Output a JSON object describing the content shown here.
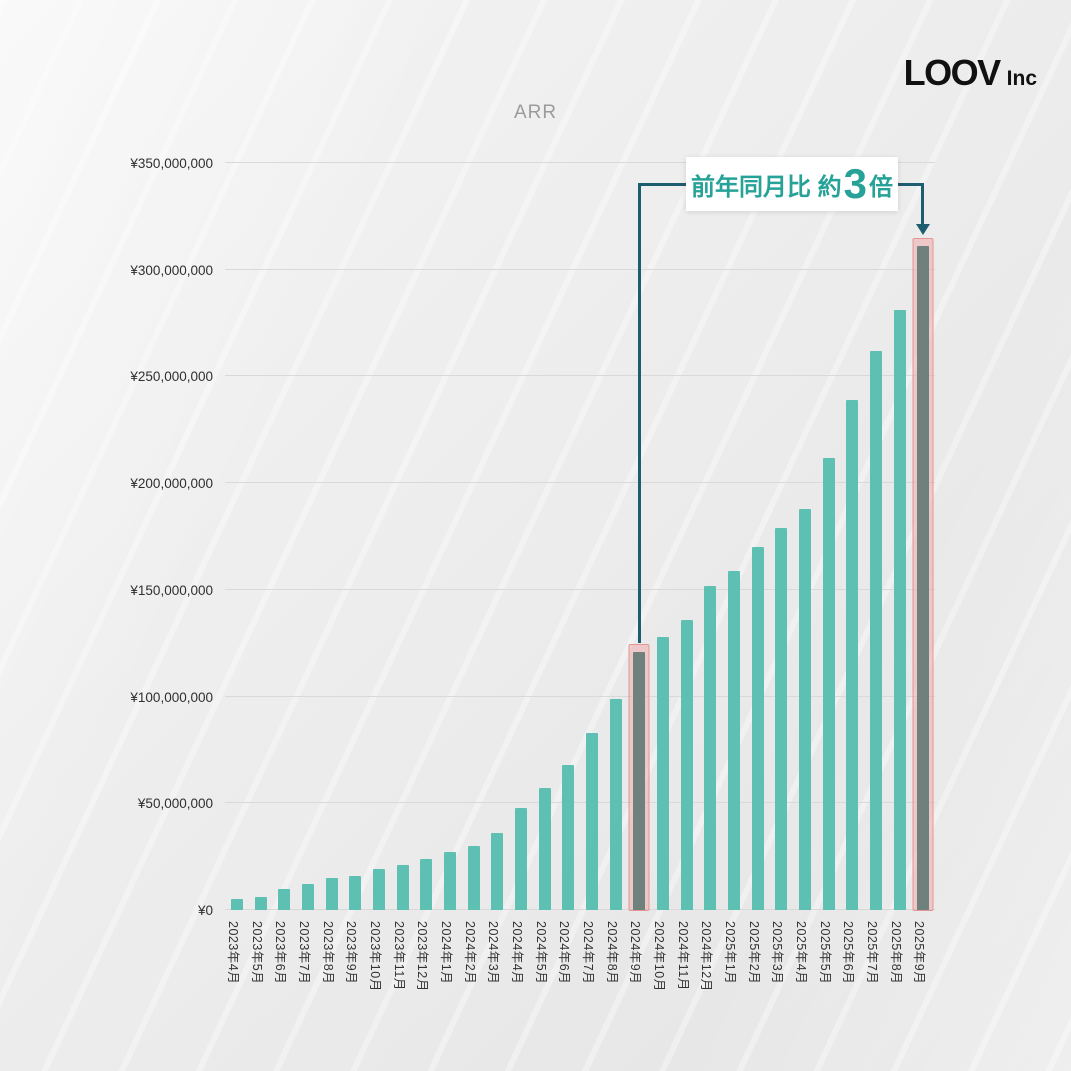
{
  "header": {
    "logo_main": "LOOV",
    "logo_sub": "Inc"
  },
  "chart_data": {
    "type": "bar",
    "title": "ARR",
    "categories": [
      "2023年4月",
      "2023年5月",
      "2023年6月",
      "2023年7月",
      "2023年8月",
      "2023年9月",
      "2023年10月",
      "2023年11月",
      "2023年12月",
      "2024年1月",
      "2024年2月",
      "2024年3月",
      "2024年4月",
      "2024年5月",
      "2024年6月",
      "2024年7月",
      "2024年8月",
      "2024年9月",
      "2024年10月",
      "2024年11月",
      "2024年12月",
      "2025年1月",
      "2025年2月",
      "2025年3月",
      "2025年4月",
      "2025年5月",
      "2025年6月",
      "2025年7月",
      "2025年8月",
      "2025年9月"
    ],
    "values": [
      5000000,
      6000000,
      10000000,
      12000000,
      15000000,
      16000000,
      19000000,
      21000000,
      24000000,
      27000000,
      30000000,
      36000000,
      48000000,
      57000000,
      68000000,
      83000000,
      99000000,
      121000000,
      128000000,
      136000000,
      152000000,
      159000000,
      170000000,
      179000000,
      188000000,
      212000000,
      239000000,
      262000000,
      281000000,
      311000000
    ],
    "ylim": [
      0,
      350000000
    ],
    "y_ticks": [
      {
        "label": "¥0",
        "value": 0
      },
      {
        "label": "¥50,000,000",
        "value": 50000000
      },
      {
        "label": "¥100,000,000",
        "value": 100000000
      },
      {
        "label": "¥150,000,000",
        "value": 150000000
      },
      {
        "label": "¥200,000,000",
        "value": 200000000
      },
      {
        "label": "¥250,000,000",
        "value": 250000000
      },
      {
        "label": "¥300,000,000",
        "value": 300000000
      },
      {
        "label": "¥350,000,000",
        "value": 350000000
      }
    ],
    "highlight_indices": [
      17,
      29
    ],
    "annotation": {
      "text_prefix": "前年同月比 約",
      "text_big": "3",
      "text_suffix": "倍",
      "color": "#27a298"
    },
    "colors": {
      "bar": "#5ec0b2",
      "highlight_bar": "#70807d",
      "highlight_box_fill": "rgba(240,166,166,0.5)",
      "highlight_box_border": "rgba(224,122,122,0.65)",
      "grid": "#d9d9d9",
      "connector": "#1d5d70",
      "title": "#9b9b9b"
    },
    "legend": "off",
    "grid": "horizontal"
  }
}
